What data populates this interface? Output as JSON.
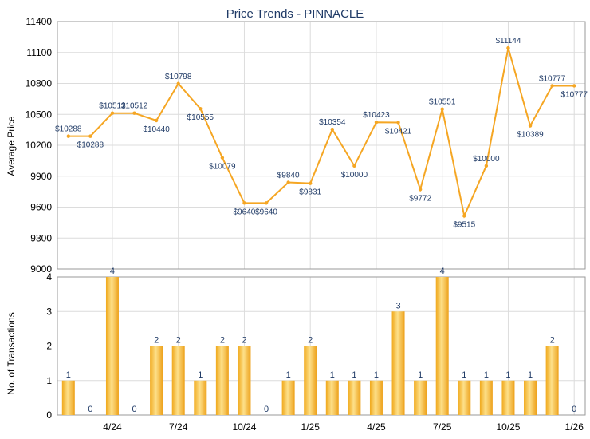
{
  "chart_data": [
    {
      "type": "line",
      "title": "Price Trends - PINNACLE",
      "ylabel": "Average Price",
      "ylim": [
        9000,
        11400
      ],
      "yticks": [
        9000,
        9300,
        9600,
        9900,
        10200,
        10500,
        10800,
        11100,
        11400
      ],
      "grid": true,
      "color": "#f5a623",
      "series": [
        {
          "values": [
            10288,
            10288,
            10512,
            10512,
            10440,
            10798,
            10555,
            10079,
            9640,
            9640,
            9840,
            9831,
            10354,
            10000,
            10423,
            10421,
            9772,
            10551,
            9515,
            10000,
            11144,
            10389,
            10777,
            10777
          ],
          "labels": [
            "$10288",
            "$10288",
            "$10512",
            "$10512",
            "$10440",
            "$10798",
            "$10555",
            "$10079",
            "$9640",
            "$9640",
            "$9840",
            "$9831",
            "$10354",
            "$10000",
            "$10423",
            "$10421",
            "$9772",
            "$10551",
            "$9515",
            "$10000",
            "$11144",
            "$10389",
            "$10777",
            "$10777"
          ]
        }
      ]
    },
    {
      "type": "bar",
      "ylabel": "No. of Transactions",
      "ylim": [
        0,
        4
      ],
      "yticks": [
        0,
        1,
        2,
        3,
        4
      ],
      "grid": true,
      "color": "#f5a623",
      "values": [
        1,
        0,
        4,
        0,
        2,
        2,
        1,
        2,
        2,
        0,
        1,
        2,
        1,
        1,
        1,
        3,
        1,
        4,
        1,
        1,
        1,
        1,
        2,
        0
      ],
      "xticks": [
        {
          "index": 2,
          "label": "4/24"
        },
        {
          "index": 5,
          "label": "7/24"
        },
        {
          "index": 8,
          "label": "10/24"
        },
        {
          "index": 11,
          "label": "1/25"
        },
        {
          "index": 14,
          "label": "4/25"
        },
        {
          "index": 17,
          "label": "7/25"
        },
        {
          "index": 20,
          "label": "10/25"
        },
        {
          "index": 23,
          "label": "1/26"
        }
      ]
    }
  ]
}
